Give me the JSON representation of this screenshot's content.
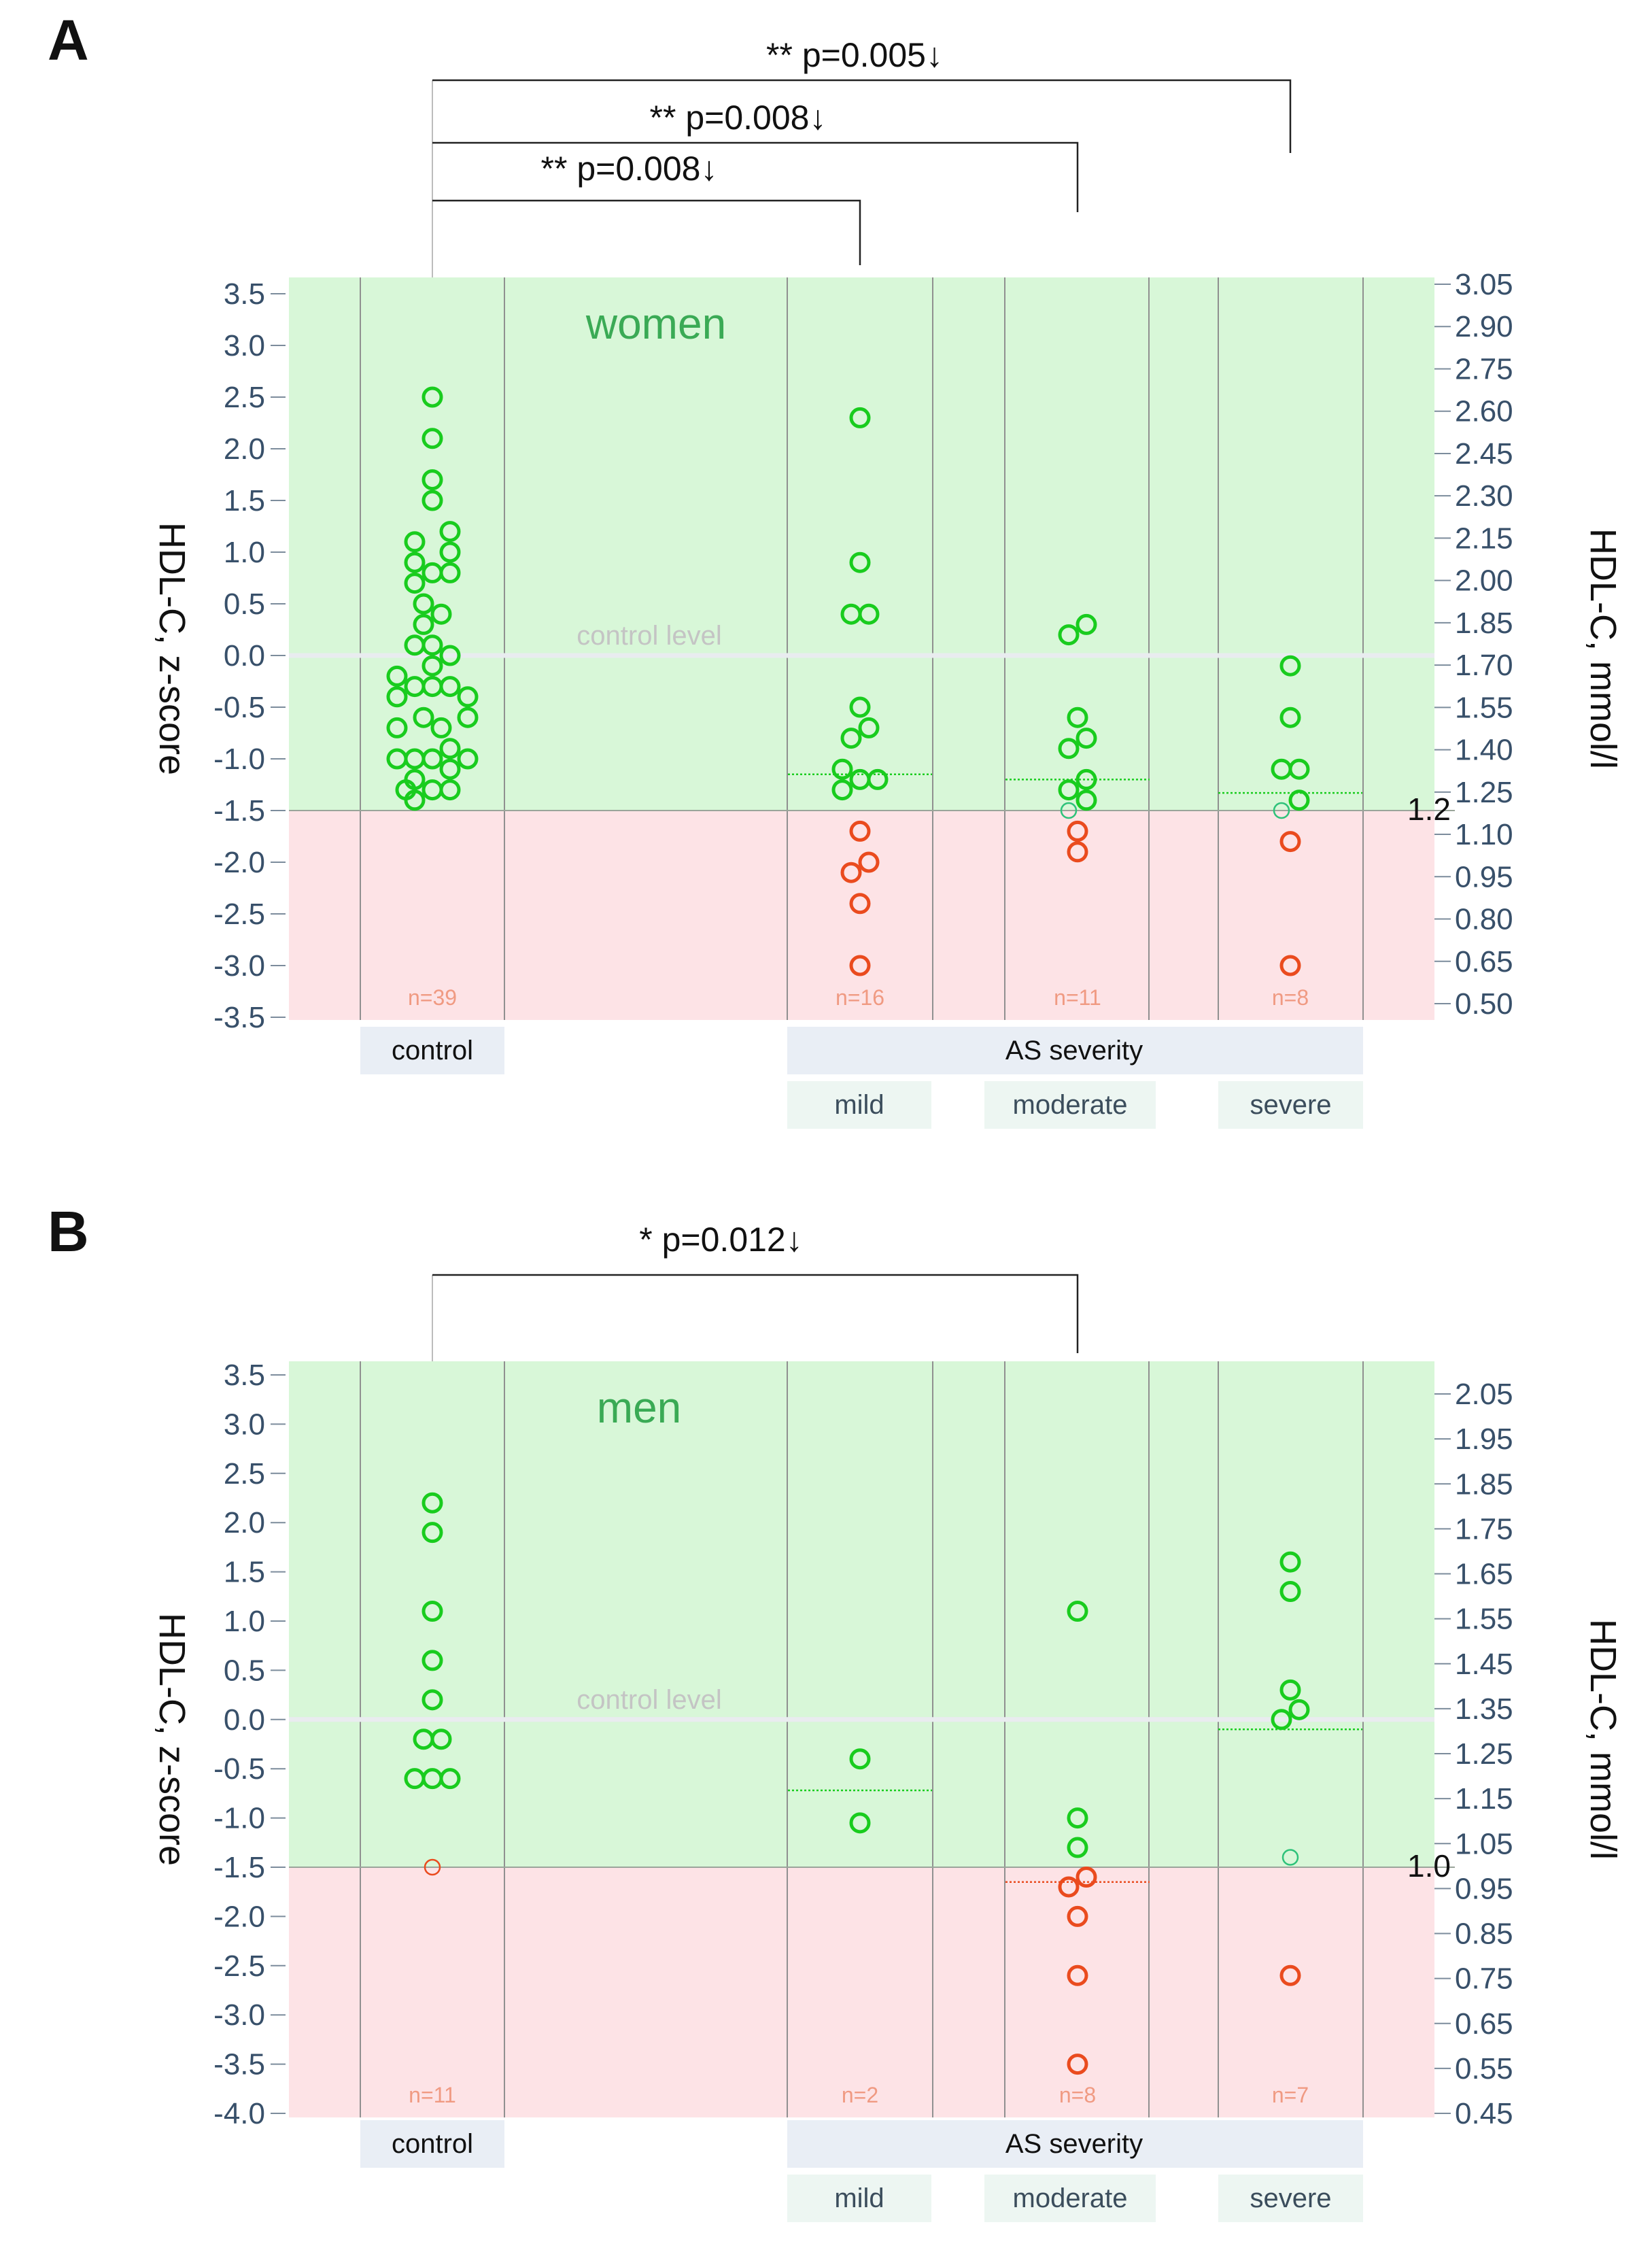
{
  "chart_data": [
    {
      "panel": "A",
      "type": "scatter",
      "group_label": "women",
      "ylabel_left": "HDL-C, z-score",
      "ylabel_right": "HDL-C, mmol/l",
      "control_level_label": "control level",
      "threshold_label": "1.2",
      "threshold_z": -1.5,
      "ylim": [
        -3.5,
        3.5
      ],
      "left_ticks": [
        "3.5",
        "3.0",
        "2.5",
        "2.0",
        "1.5",
        "1.0",
        "0.5",
        "0.0",
        "-0.5",
        "-1.0",
        "-1.5",
        "-2.0",
        "-2.5",
        "-3.0",
        "-3.5"
      ],
      "right_ticks": [
        "3.05",
        "2.90",
        "2.75",
        "2.60",
        "2.45",
        "2.30",
        "2.15",
        "2.00",
        "1.85",
        "1.70",
        "1.55",
        "1.40",
        "1.25",
        "1.10",
        "0.95",
        "0.80",
        "0.65",
        "0.50"
      ],
      "groups": [
        {
          "name": "control",
          "slot": 1,
          "n": "n=39",
          "mean": 0.0,
          "points": [
            {
              "dx": 0,
              "y": 2.5
            },
            {
              "dx": 0,
              "y": 2.1
            },
            {
              "dx": 0,
              "y": 1.7
            },
            {
              "dx": 0,
              "y": 1.5
            },
            {
              "dx": -1,
              "y": 1.1
            },
            {
              "dx": 1,
              "y": 1.2
            },
            {
              "dx": -1,
              "y": 0.9
            },
            {
              "dx": 1,
              "y": 1.0
            },
            {
              "dx": -1,
              "y": 0.7
            },
            {
              "dx": 0,
              "y": 0.8
            },
            {
              "dx": 1,
              "y": 0.8
            },
            {
              "dx": -0.5,
              "y": 0.5
            },
            {
              "dx": 0.5,
              "y": 0.4
            },
            {
              "dx": -0.5,
              "y": 0.3
            },
            {
              "dx": -1,
              "y": 0.1
            },
            {
              "dx": 0,
              "y": 0.1
            },
            {
              "dx": 1,
              "y": 0.0
            },
            {
              "dx": -2,
              "y": -0.2
            },
            {
              "dx": 0,
              "y": -0.1
            },
            {
              "dx": -2,
              "y": -0.4
            },
            {
              "dx": -1,
              "y": -0.3
            },
            {
              "dx": 0,
              "y": -0.3
            },
            {
              "dx": 1,
              "y": -0.3
            },
            {
              "dx": 2,
              "y": -0.4
            },
            {
              "dx": -0.5,
              "y": -0.6
            },
            {
              "dx": 2,
              "y": -0.6
            },
            {
              "dx": -2,
              "y": -0.7
            },
            {
              "dx": 0.5,
              "y": -0.7
            },
            {
              "dx": 1,
              "y": -0.9
            },
            {
              "dx": -2,
              "y": -1.0
            },
            {
              "dx": -1,
              "y": -1.0
            },
            {
              "dx": 0,
              "y": -1.0
            },
            {
              "dx": 2,
              "y": -1.0
            },
            {
              "dx": 1,
              "y": -1.1
            },
            {
              "dx": -1,
              "y": -1.2
            },
            {
              "dx": 0,
              "y": -1.3
            },
            {
              "dx": 1,
              "y": -1.3
            },
            {
              "dx": -1,
              "y": -1.4
            },
            {
              "dx": -1.5,
              "y": -1.3
            }
          ]
        },
        {
          "name": "mild",
          "slot": 4,
          "n": "n=16",
          "mean": -1.15,
          "points": [
            {
              "dx": 0,
              "y": 2.3
            },
            {
              "dx": 0,
              "y": 0.9
            },
            {
              "dx": -0.5,
              "y": 0.4
            },
            {
              "dx": 0.5,
              "y": 0.4
            },
            {
              "dx": 0,
              "y": -0.5
            },
            {
              "dx": -0.5,
              "y": -0.8
            },
            {
              "dx": 0.5,
              "y": -0.7
            },
            {
              "dx": -1,
              "y": -1.1
            },
            {
              "dx": -1,
              "y": -1.3
            },
            {
              "dx": 0,
              "y": -1.2
            },
            {
              "dx": 1,
              "y": -1.2
            },
            {
              "dx": 0,
              "y": -1.7
            },
            {
              "dx": -0.5,
              "y": -2.1
            },
            {
              "dx": 0.5,
              "y": -2.0
            },
            {
              "dx": 0,
              "y": -2.4
            },
            {
              "dx": 0,
              "y": -3.0
            }
          ]
        },
        {
          "name": "moderate",
          "slot": 6,
          "n": "n=11",
          "mean": -1.2,
          "points": [
            {
              "dx": -0.5,
              "y": 0.2
            },
            {
              "dx": 0.5,
              "y": 0.3
            },
            {
              "dx": 0,
              "y": -0.6
            },
            {
              "dx": -0.5,
              "y": -0.9
            },
            {
              "dx": 0.5,
              "y": -0.8
            },
            {
              "dx": -0.5,
              "y": -1.3
            },
            {
              "dx": 0.5,
              "y": -1.2
            },
            {
              "dx": 0.5,
              "y": -1.4
            },
            {
              "dx": 0,
              "y": -1.7
            },
            {
              "dx": 0,
              "y": -1.9
            }
          ],
          "threshold_point": {
            "dx": -0.5,
            "y": -1.5
          }
        },
        {
          "name": "severe",
          "slot": 8,
          "n": "n=8",
          "mean": -1.33,
          "points": [
            {
              "dx": 0,
              "y": -0.1
            },
            {
              "dx": 0,
              "y": -0.6
            },
            {
              "dx": -0.5,
              "y": -1.1
            },
            {
              "dx": 0.5,
              "y": -1.1
            },
            {
              "dx": 0.5,
              "y": -1.4
            },
            {
              "dx": 0,
              "y": -1.8
            },
            {
              "dx": 0,
              "y": -3.0
            }
          ],
          "threshold_point": {
            "dx": -0.5,
            "y": -1.5
          }
        }
      ],
      "category_labels": {
        "control": "control",
        "as_severity": "AS severity",
        "mild": "mild",
        "moderate": "moderate",
        "severe": "severe"
      },
      "comparisons": [
        {
          "stars": "**",
          "p": "p=0.005",
          "arrow": "↓",
          "to": "severe"
        },
        {
          "stars": "**",
          "p": "p=0.008",
          "arrow": "↓",
          "to": "moderate"
        },
        {
          "stars": "**",
          "p": "p=0.008",
          "arrow": "↓",
          "to": "mild"
        }
      ]
    },
    {
      "panel": "B",
      "type": "scatter",
      "group_label": "men",
      "ylabel_left": "HDL-C, z-score",
      "ylabel_right": "HDL-C, mmol/l",
      "control_level_label": "control level",
      "threshold_label": "1.0",
      "threshold_z": -1.5,
      "ylim": [
        -4.0,
        3.5
      ],
      "left_ticks": [
        "3.5",
        "3.0",
        "2.5",
        "2.0",
        "1.5",
        "1.0",
        "0.5",
        "0.0",
        "-0.5",
        "-1.0",
        "-1.5",
        "-2.0",
        "-2.5",
        "-3.0",
        "-3.5",
        "-4.0"
      ],
      "right_ticks": [
        "2.05",
        "1.95",
        "1.85",
        "1.75",
        "1.65",
        "1.55",
        "1.45",
        "1.35",
        "1.25",
        "1.15",
        "1.05",
        "0.95",
        "0.85",
        "0.75",
        "0.65",
        "0.55",
        "0.45"
      ],
      "groups": [
        {
          "name": "control",
          "slot": 1,
          "n": "n=11",
          "mean": 0.0,
          "points": [
            {
              "dx": 0,
              "y": 2.2
            },
            {
              "dx": 0,
              "y": 1.9
            },
            {
              "dx": 0,
              "y": 1.1
            },
            {
              "dx": 0,
              "y": 0.6
            },
            {
              "dx": 0,
              "y": 0.2
            },
            {
              "dx": -0.5,
              "y": -0.2
            },
            {
              "dx": 0.5,
              "y": -0.2
            },
            {
              "dx": -1,
              "y": -0.6
            },
            {
              "dx": 0,
              "y": -0.6
            },
            {
              "dx": 1,
              "y": -0.6
            }
          ],
          "threshold_point": {
            "dx": 0,
            "y": -1.5
          }
        },
        {
          "name": "mild",
          "slot": 4,
          "n": "n=2",
          "mean": -0.72,
          "points": [
            {
              "dx": 0,
              "y": -0.4
            },
            {
              "dx": 0,
              "y": -1.05
            }
          ]
        },
        {
          "name": "moderate",
          "slot": 6,
          "n": "n=8",
          "mean": -1.65,
          "points": [
            {
              "dx": 0,
              "y": 1.1
            },
            {
              "dx": 0,
              "y": -1.0
            },
            {
              "dx": 0,
              "y": -1.3
            },
            {
              "dx": -0.5,
              "y": -1.7
            },
            {
              "dx": 0.5,
              "y": -1.6
            },
            {
              "dx": 0,
              "y": -2.0
            },
            {
              "dx": 0,
              "y": -2.6
            },
            {
              "dx": 0,
              "y": -3.5
            }
          ]
        },
        {
          "name": "severe",
          "slot": 8,
          "n": "n=7",
          "mean": -0.1,
          "points": [
            {
              "dx": 0,
              "y": 1.6
            },
            {
              "dx": 0,
              "y": 1.3
            },
            {
              "dx": 0,
              "y": 0.3
            },
            {
              "dx": -0.5,
              "y": 0.0
            },
            {
              "dx": 0.5,
              "y": 0.1
            },
            {
              "dx": 0,
              "y": -2.6
            }
          ],
          "threshold_point": {
            "dx": 0,
            "y": -1.4
          }
        }
      ],
      "category_labels": {
        "control": "control",
        "as_severity": "AS severity",
        "mild": "mild",
        "moderate": "moderate",
        "severe": "severe"
      },
      "comparisons": [
        {
          "stars": "*",
          "p": "p=0.012",
          "arrow": "↓",
          "to": "moderate"
        }
      ]
    }
  ],
  "colors": {
    "above": "#d8f7d8",
    "below": "#fde3e6",
    "green": "#19cc1e",
    "red": "#ea4b1e",
    "catbox": "#e9eef5",
    "subbox": "#edf6f2"
  }
}
